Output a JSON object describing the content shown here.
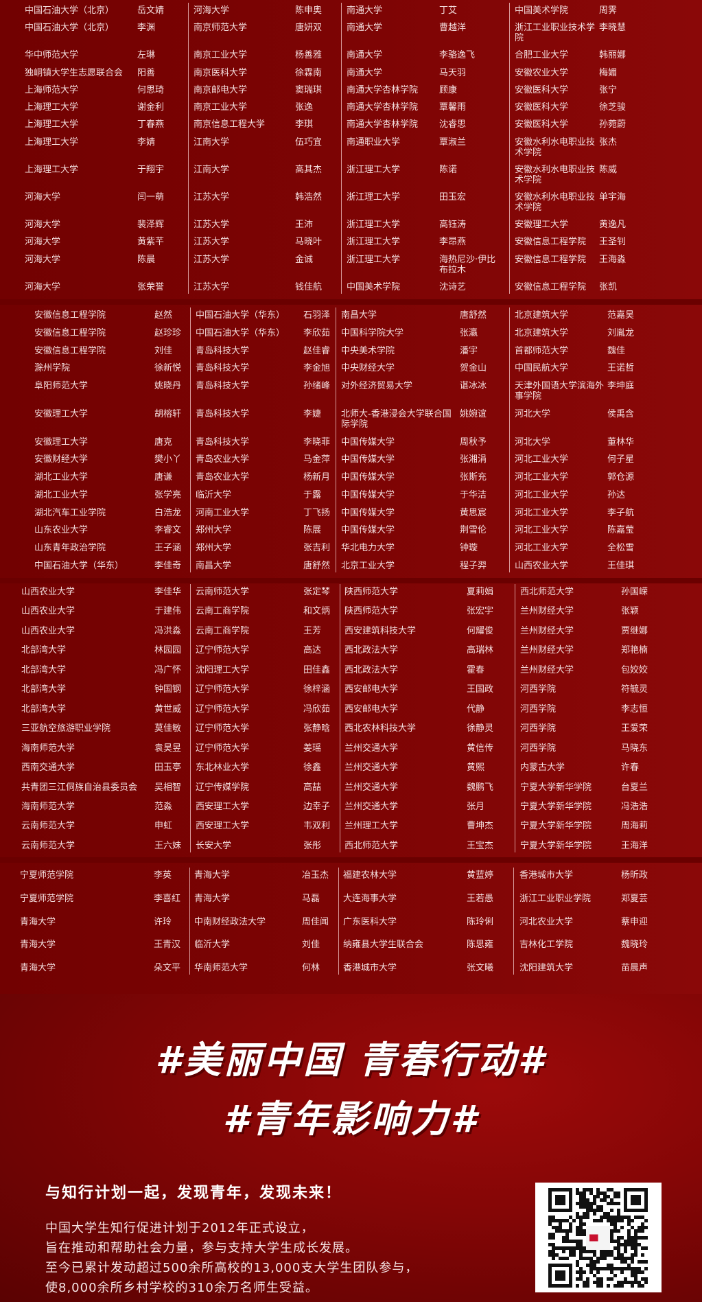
{
  "colors": {
    "background": "#7a0303",
    "text": "#f4dede",
    "footer_red": "#9c0a0a"
  },
  "sections": [
    {
      "rows": [
        [
          "中国石油大学（北京）",
          "岳文婧",
          "河海大学",
          "陈申奥",
          "南通大学",
          "丁艾",
          "中国美术学院",
          "周霁"
        ],
        [
          "中国石油大学（北京）",
          "李渊",
          "南京师范大学",
          "唐妍双",
          "南通大学",
          "曹越洋",
          "浙江工业职业技术学院",
          "李晓慧"
        ],
        [
          "华中师范大学",
          "左琳",
          "南京工业大学",
          "杨善雅",
          "南通大学",
          "李骆逸飞",
          "合肥工业大学",
          "韩丽娜"
        ],
        [
          "独峒镇大学生志愿联合会",
          "阳善",
          "南京医科大学",
          "徐霖南",
          "南通大学",
          "马天羽",
          "安徽农业大学",
          "梅媚"
        ],
        [
          "上海师范大学",
          "何思琦",
          "南京邮电大学",
          "窦瑞琪",
          "南通大学杏林学院",
          "顾康",
          "安徽医科大学",
          "张宁"
        ],
        [
          "上海理工大学",
          "谢金利",
          "南京工业大学",
          "张逸",
          "南通大学杏林学院",
          "覃馨雨",
          "安徽医科大学",
          "徐芝骏"
        ],
        [
          "上海理工大学",
          "丁春燕",
          "南京信息工程大学",
          "李琪",
          "南通大学杏林学院",
          "沈睿思",
          "安徽医科大学",
          "孙菀蔚"
        ],
        [
          "上海理工大学",
          "李婧",
          "江南大学",
          "伍巧宜",
          "南通职业大学",
          "覃淑兰",
          "安徽水利水电职业技术学院",
          "张杰"
        ],
        [
          "上海理工大学",
          "于翔宇",
          "江南大学",
          "高其杰",
          "浙江理工大学",
          "陈诺",
          "安徽水利水电职业技术学院",
          "陈威"
        ],
        [
          "河海大学",
          "闫一萌",
          "江苏大学",
          "韩浩然",
          "浙江理工大学",
          "田玉宏",
          "安徽水利水电职业技术学院",
          "单宇海"
        ],
        [
          "河海大学",
          "裴泽辉",
          "江苏大学",
          "王沛",
          "浙江理工大学",
          "高钰涛",
          "安徽理工大学",
          "黄逸凡"
        ],
        [
          "河海大学",
          "黄紫芊",
          "江苏大学",
          "马晓叶",
          "浙江理工大学",
          "李昂燕",
          "安徽信息工程学院",
          "王圣钊"
        ],
        [
          "河海大学",
          "陈晨",
          "江苏大学",
          "金诚",
          "浙江理工大学",
          "海热尼沙·伊比布拉木",
          "安徽信息工程学院",
          "王海淼"
        ],
        [
          "河海大学",
          "张荣誉",
          "江苏大学",
          "钱佳航",
          "中国美术学院",
          "沈诗艺",
          "安徽信息工程学院",
          "张凯"
        ]
      ]
    },
    {
      "rows": [
        [
          "安徽信息工程学院",
          "赵然",
          "中国石油大学（华东）",
          "石羽泽",
          "南昌大学",
          "唐舒然",
          "北京建筑大学",
          "范嘉昊"
        ],
        [
          "安徽信息工程学院",
          "赵珍珍",
          "中国石油大学（华东）",
          "李欣茹",
          "中国科学院大学",
          "张瀛",
          "北京建筑大学",
          "刘胤龙"
        ],
        [
          "安徽信息工程学院",
          "刘佳",
          "青岛科技大学",
          "赵佳睿",
          "中央美术学院",
          "潘宇",
          "首都师范大学",
          "魏佳"
        ],
        [
          "滁州学院",
          "徐新悦",
          "青岛科技大学",
          "李金旭",
          "中央财经大学",
          "贺金山",
          "中国民航大学",
          "王诺哲"
        ],
        [
          "阜阳师范大学",
          "姚晓丹",
          "青岛科技大学",
          "孙绪峰",
          "对外经济贸易大学",
          "谌冰冰",
          "天津外国语大学滨海外事学院",
          "李坤庭"
        ],
        [
          "安徽理工大学",
          "胡榕轩",
          "青岛科技大学",
          "李婕",
          "北师大-香港浸会大学联合国际学院",
          "姚婉谊",
          "河北大学",
          "侯禹含"
        ],
        [
          "安徽理工大学",
          "唐克",
          "青岛科技大学",
          "李晓菲",
          "中国传媒大学",
          "周秋予",
          "河北大学",
          "董林华"
        ],
        [
          "安徽财经大学",
          "樊小丫",
          "青岛农业大学",
          "马金萍",
          "中国传媒大学",
          "张湘涓",
          "河北工业大学",
          "何子星"
        ],
        [
          "湖北工业大学",
          "唐谦",
          "青岛农业大学",
          "杨新月",
          "中国传媒大学",
          "张斯充",
          "河北工业大学",
          "郭仓源"
        ],
        [
          "湖北工业大学",
          "张学亮",
          "临沂大学",
          "于露",
          "中国传媒大学",
          "于华洁",
          "河北工业大学",
          "孙达"
        ],
        [
          "湖北汽车工业学院",
          "白浩龙",
          "河南工业大学",
          "丁飞扬",
          "中国传媒大学",
          "黄思宸",
          "河北工业大学",
          "李子航"
        ],
        [
          "山东农业大学",
          "李睿文",
          "郑州大学",
          "陈展",
          "中国传媒大学",
          "荆雪伦",
          "河北工业大学",
          "陈嘉莹"
        ],
        [
          "山东青年政治学院",
          "王子涵",
          "郑州大学",
          "张吉利",
          "华北电力大学",
          "钟璇",
          "河北工业大学",
          "全松雪"
        ],
        [
          "中国石油大学（华东）",
          "李佳奇",
          "南昌大学",
          "唐舒然",
          "北京工业大学",
          "程子羿",
          "山西农业大学",
          "王佳琪"
        ]
      ]
    },
    {
      "rows": [
        [
          "山西农业大学",
          "李佳华",
          "云南师范大学",
          "张定琴",
          "陕西师范大学",
          "夏莉娟",
          "西北师范大学",
          "孙国嵘"
        ],
        [
          "山西农业大学",
          "于建伟",
          "云南工商学院",
          "和文炳",
          "陕西师范大学",
          "张宏宇",
          "兰州财经大学",
          "张颖"
        ],
        [
          "山西农业大学",
          "冯洪淼",
          "云南工商学院",
          "王芳",
          "西安建筑科技大学",
          "何耀俊",
          "兰州财经大学",
          "贾继娜"
        ],
        [
          "北部湾大学",
          "林园园",
          "辽宁师范大学",
          "高达",
          "西北政法大学",
          "高瑞林",
          "兰州财经大学",
          "郑艳楠"
        ],
        [
          "北部湾大学",
          "冯广怀",
          "沈阳理工大学",
          "田佳鑫",
          "西北政法大学",
          "霍春",
          "兰州财经大学",
          "包姣姣"
        ],
        [
          "北部湾大学",
          "钟国钢",
          "辽宁师范大学",
          "徐梓涵",
          "西安邮电大学",
          "王国政",
          "河西学院",
          "符毓灵"
        ],
        [
          "北部湾大学",
          "黄世威",
          "辽宁师范大学",
          "冯欣茹",
          "西安邮电大学",
          "代静",
          "河西学院",
          "李志恒"
        ],
        [
          "三亚航空旅游职业学院",
          "莫佳敏",
          "辽宁师范大学",
          "张静晗",
          "西北农林科技大学",
          "徐静灵",
          "河西学院",
          "王爱荣"
        ],
        [
          "海南师范大学",
          "袁昊昱",
          "辽宁师范大学",
          "姜瑶",
          "兰州交通大学",
          "黄信传",
          "河西学院",
          "马晓东"
        ],
        [
          "西南交通大学",
          "田玉亭",
          "东北林业大学",
          "徐鑫",
          "兰州交通大学",
          "黄熙",
          "内蒙古大学",
          "许春"
        ],
        [
          "共青团三江侗族自治县委员会",
          "吴相智",
          "辽宁传媒学院",
          "高喆",
          "兰州交通大学",
          "魏鹏飞",
          "宁夏大学新华学院",
          "台夏兰"
        ],
        [
          "海南师范大学",
          "范淼",
          "西安理工大学",
          "边幸子",
          "兰州交通大学",
          "张月",
          "宁夏大学新华学院",
          "冯浩浩"
        ],
        [
          "云南师范大学",
          "申虹",
          "西安理工大学",
          "韦双利",
          "兰州理工大学",
          "曹坤杰",
          "宁夏大学新华学院",
          "周海莉"
        ],
        [
          "云南师范大学",
          "王六妹",
          "长安大学",
          "张彤",
          "西北师范大学",
          "王宝杰",
          "宁夏大学新华学院",
          "王海洋"
        ]
      ]
    },
    {
      "rows": [
        [
          "宁夏师范学院",
          "李英",
          "青海大学",
          "冶玉杰",
          "福建农林大学",
          "黄蓝婷",
          "香港城市大学",
          "杨昕政"
        ],
        [
          "宁夏师范学院",
          "李喜红",
          "青海大学",
          "马磊",
          "大连海事大学",
          "王若愚",
          "浙江工业职业学院",
          "郑夏芸"
        ],
        [
          "青海大学",
          "许玲",
          "中南财经政法大学",
          "周佳闻",
          "广东医科大学",
          "陈玲俐",
          "河北农业大学",
          "蔡申迎"
        ],
        [
          "青海大学",
          "王青汉",
          "临沂大学",
          "刘佳",
          "纳雍县大学生联合会",
          "陈思雍",
          "吉林化工学院",
          "魏晓玲"
        ],
        [
          "青海大学",
          "朵文平",
          "华南师范大学",
          "何林",
          "香港城市大学",
          "张文曦",
          "沈阳建筑大学",
          "苗晨声"
        ]
      ]
    }
  ],
  "footer": {
    "slogan_line1": "#美丽中国  青春行动#",
    "slogan_line2": "#青年影响力#",
    "tagline": "与知行计划一起，发现青年，发现未来！",
    "paragraph": [
      "中国大学生知行促进计划于2012年正式设立，",
      "旨在推动和帮助社会力量，参与支持大学生成长发展。",
      "至今已累计发动超过500余所高校的13,000支大学生团队参与，",
      "使8,000余所乡村学校的310余万名师生受益。"
    ],
    "qr_icon": "qr-code-icon"
  }
}
